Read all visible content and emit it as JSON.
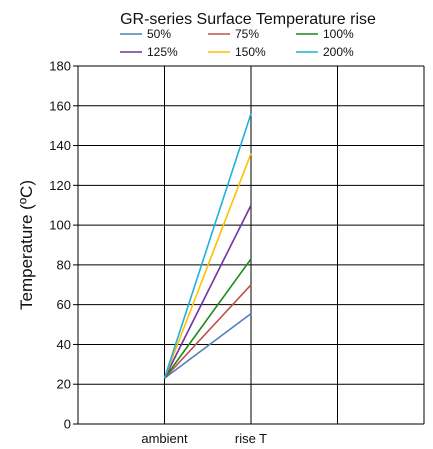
{
  "chart_data": {
    "type": "line",
    "title": "GR-series Surface Temperature rise",
    "xlabel": "",
    "ylabel": "Temperature (ºC)",
    "categories": [
      "ambient",
      "rise T"
    ],
    "ylim": [
      0,
      180
    ],
    "yticks": [
      0,
      20,
      40,
      60,
      80,
      100,
      120,
      140,
      160,
      180
    ],
    "grid": true,
    "legend_position": "top",
    "series": [
      {
        "name": "50%",
        "color": "#4f81bd",
        "values": [
          23,
          55.5
        ]
      },
      {
        "name": "75%",
        "color": "#c0504d",
        "values": [
          23,
          70
        ]
      },
      {
        "name": "100%",
        "color": "#1a8a1a",
        "values": [
          23,
          83
        ]
      },
      {
        "name": "125%",
        "color": "#7030a0",
        "values": [
          23,
          110
        ]
      },
      {
        "name": "150%",
        "color": "#ffc000",
        "values": [
          23,
          136
        ]
      },
      {
        "name": "200%",
        "color": "#1fb0e0",
        "values": [
          23,
          156
        ]
      }
    ]
  }
}
